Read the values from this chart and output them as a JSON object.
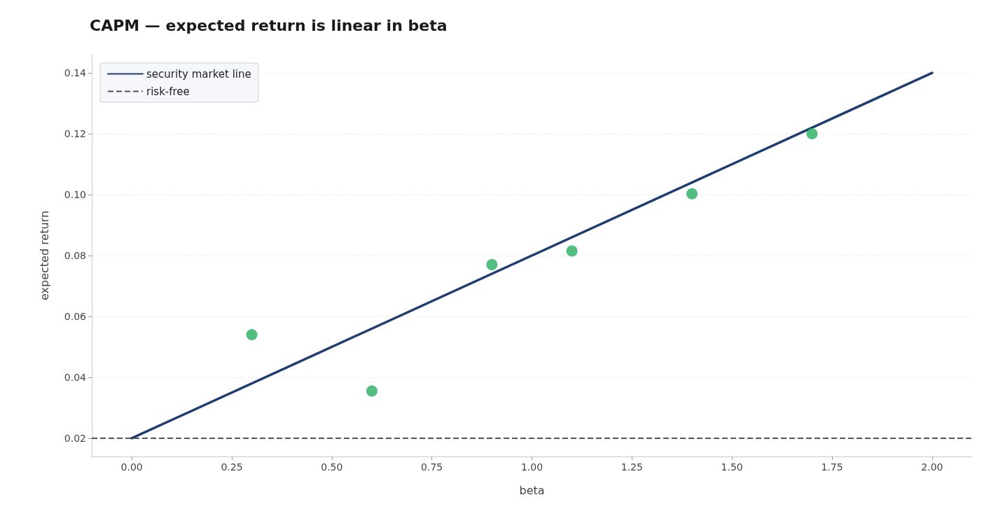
{
  "chart_data": {
    "type": "scatter",
    "title": "CAPM — expected return is linear in beta",
    "xlabel": "beta",
    "ylabel": "expected return",
    "xlim": [
      -0.1,
      2.1
    ],
    "ylim": [
      0.014,
      0.146
    ],
    "xticks": [
      {
        "value": 0,
        "label": "0.00"
      },
      {
        "value": 0.25,
        "label": "0.25"
      },
      {
        "value": 0.5,
        "label": "0.50"
      },
      {
        "value": 0.75,
        "label": "0.75"
      },
      {
        "value": 1,
        "label": "1.00"
      },
      {
        "value": 1.25,
        "label": "1.25"
      },
      {
        "value": 1.5,
        "label": "1.50"
      },
      {
        "value": 1.75,
        "label": "1.75"
      },
      {
        "value": 2,
        "label": "2.00"
      }
    ],
    "yticks": [
      {
        "value": 0.02,
        "label": "0.02"
      },
      {
        "value": 0.04,
        "label": "0.04"
      },
      {
        "value": 0.06,
        "label": "0.06"
      },
      {
        "value": 0.08,
        "label": "0.08"
      },
      {
        "value": 0.1,
        "label": "0.10"
      },
      {
        "value": 0.12,
        "label": "0.12"
      },
      {
        "value": 0.14,
        "label": "0.14"
      }
    ],
    "grid": "y",
    "legend": "top left",
    "marker": "circle",
    "series": [
      {
        "name": "security market line",
        "type": "line",
        "color": "#1f3d6e",
        "x": [
          0,
          2
        ],
        "values": [
          0.02,
          0.14
        ],
        "marker": "none",
        "line_style": "solid"
      },
      {
        "type": "scatter",
        "color": "#27ae60",
        "x": [
          0.3,
          0.6,
          0.9,
          1.1,
          1.4,
          1.7
        ],
        "values": [
          0.054,
          0.0355,
          0.077,
          0.0815,
          0.1003,
          0.12
        ]
      }
    ],
    "ref_lines": [
      {
        "axis": "y",
        "value": 0.02,
        "label": "risk-free",
        "color": "#555555",
        "line_style": "dashed"
      }
    ]
  }
}
